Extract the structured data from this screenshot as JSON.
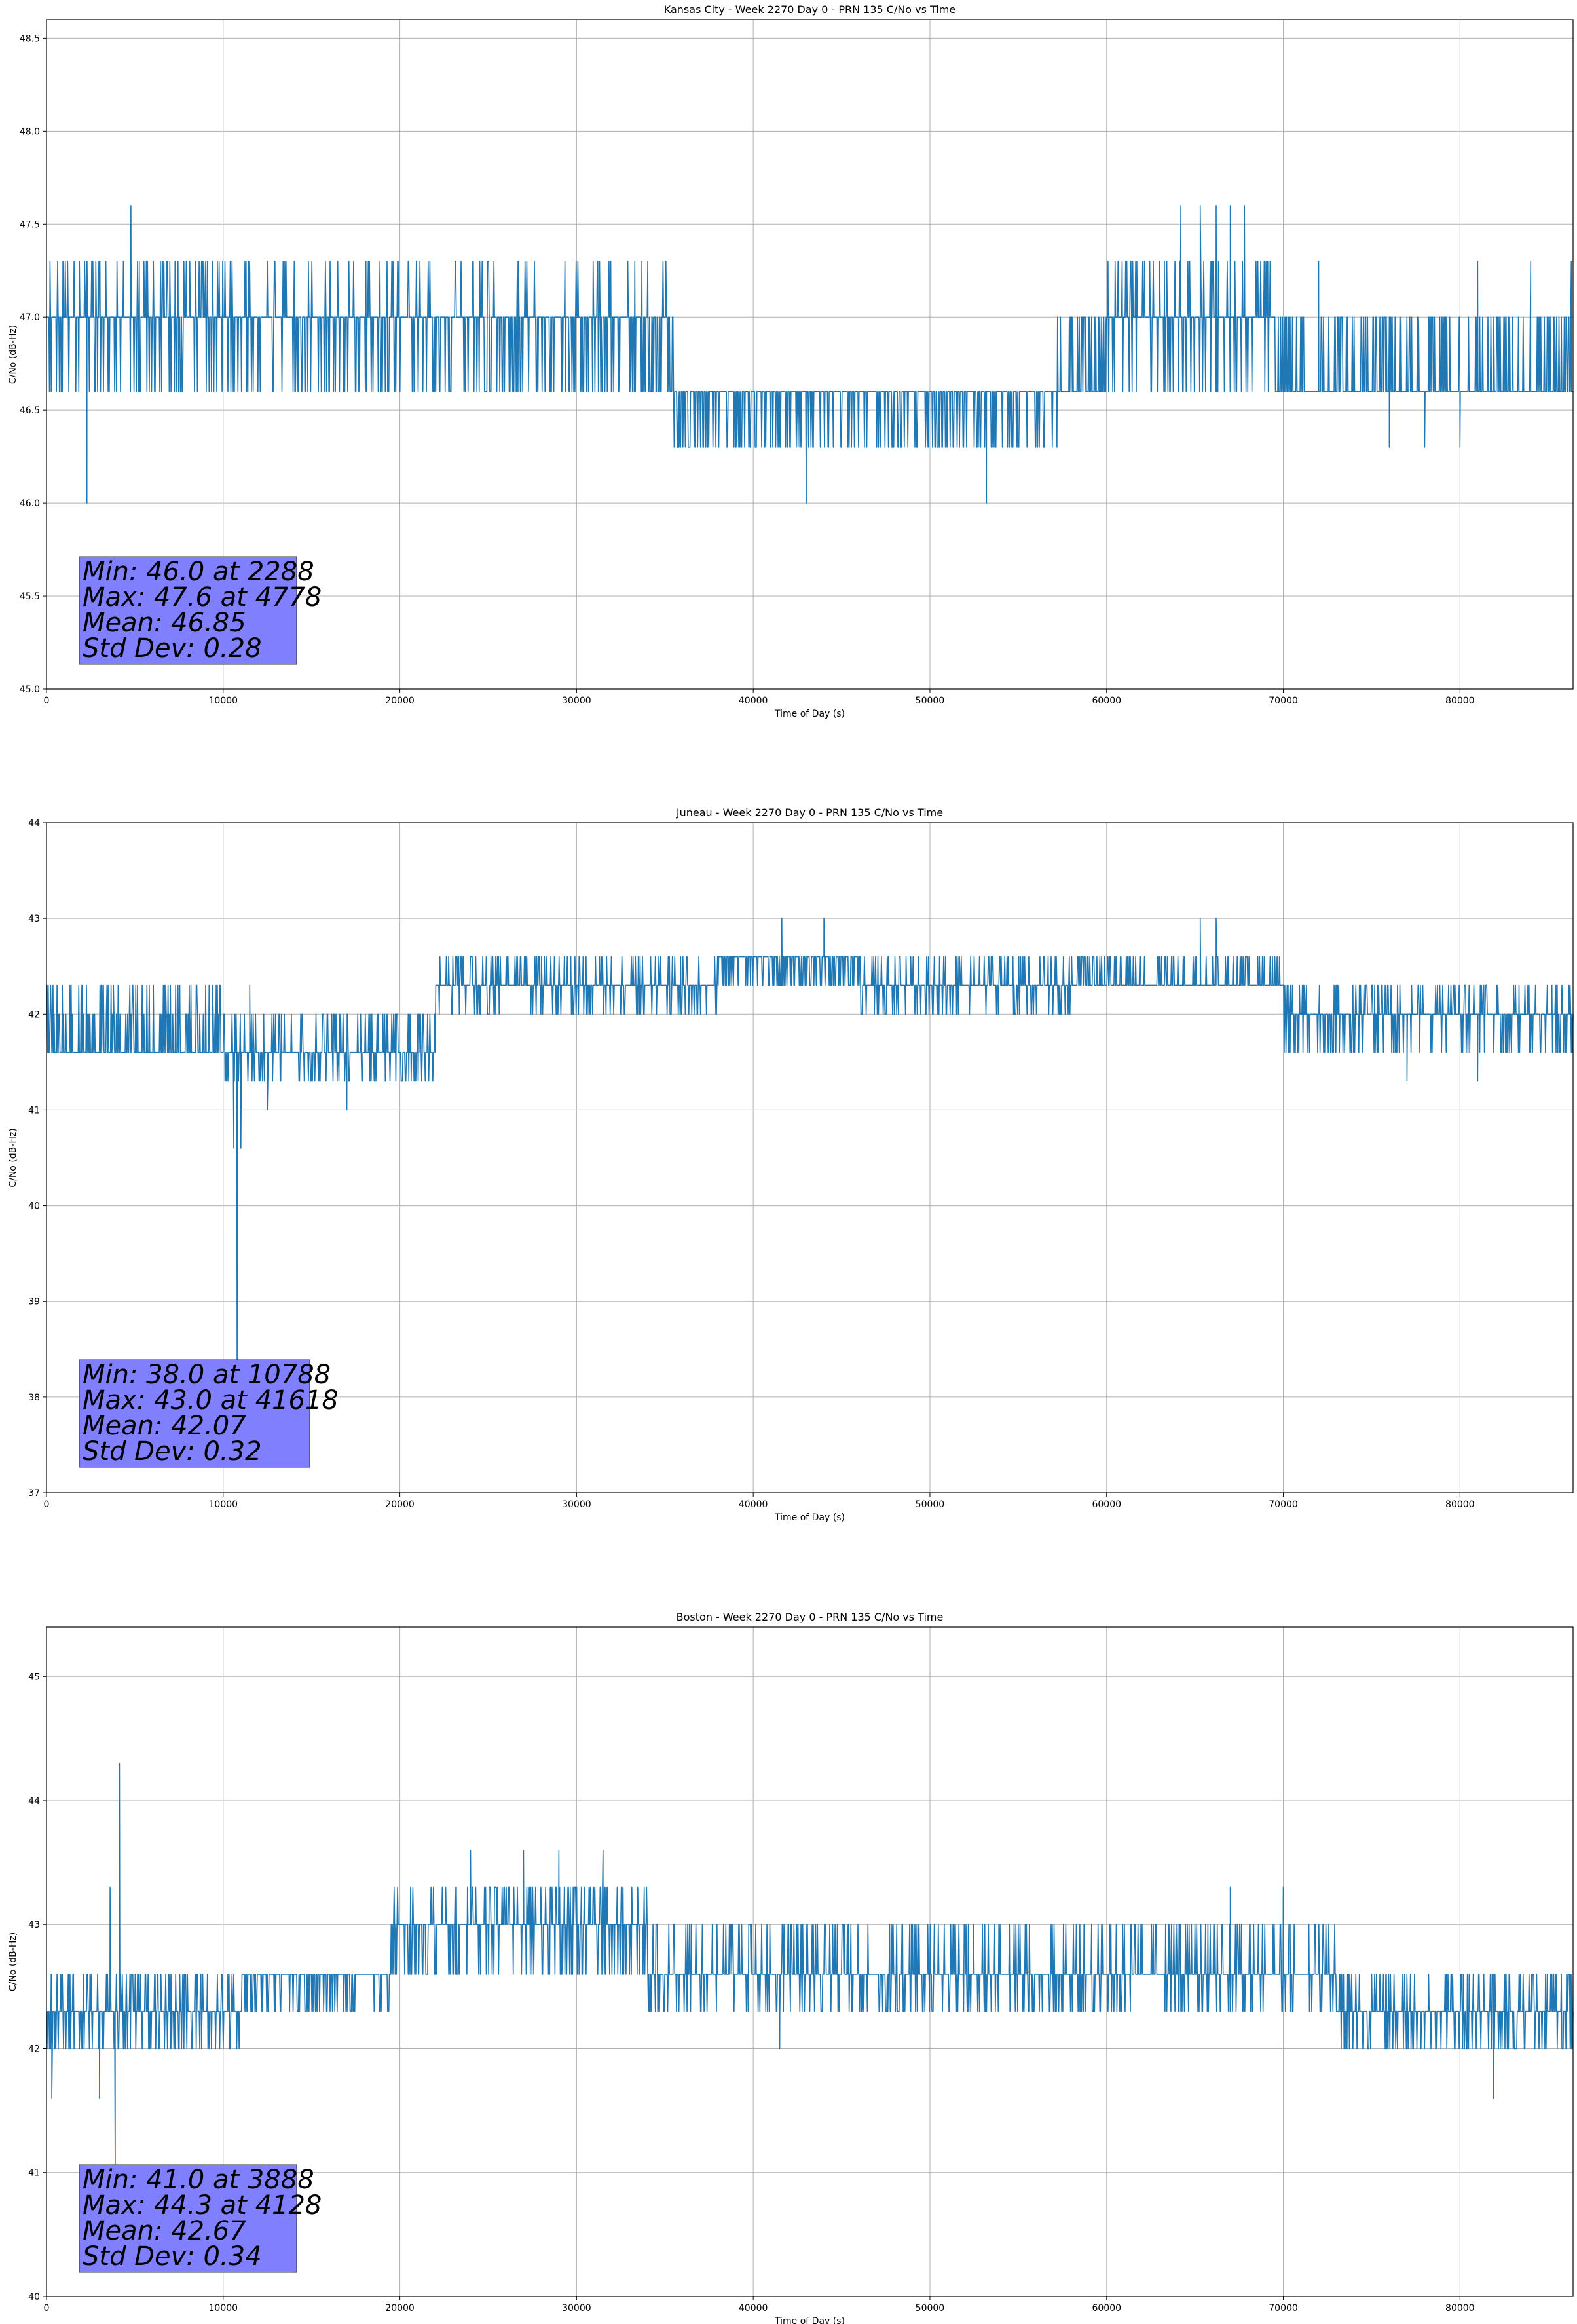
{
  "chart_data": [
    {
      "type": "line",
      "title": "Kansas City - Week 2270 Day 0 - PRN 135 C/No vs Time",
      "xlabel": "Time of Day (s)",
      "ylabel": "C/No (dB-Hz)",
      "xlim": [
        0,
        86400
      ],
      "ylim": [
        45.0,
        48.6
      ],
      "xticks": [
        0,
        10000,
        20000,
        30000,
        40000,
        50000,
        60000,
        70000,
        80000
      ],
      "yticks": [
        45.0,
        45.5,
        46.0,
        46.5,
        47.0,
        47.5,
        48.0,
        48.5
      ],
      "ytick_labels": [
        "45.0",
        "45.5",
        "46.0",
        "46.5",
        "47.0",
        "47.5",
        "48.0",
        "48.5"
      ],
      "grid": true,
      "color": "#1f77b4",
      "stats_lines": [
        "Min: 46.0 at 2288",
        "Max: 47.6 at 4778",
        "Mean: 46.85",
        "Std Dev: 0.28"
      ],
      "segments": [
        {
          "x": [
            0,
            35500
          ],
          "levels": [
            46.6,
            47.0,
            47.3
          ],
          "base": 47.0
        },
        {
          "x": [
            21800,
            33000
          ],
          "levels": [
            46.6,
            47.0
          ],
          "base": 46.9
        },
        {
          "x": [
            33000,
            35500
          ],
          "levels": [
            46.6,
            47.0
          ],
          "base": 46.8
        },
        {
          "x": [
            35500,
            57200
          ],
          "levels": [
            46.3,
            46.6
          ],
          "base": 46.5
        },
        {
          "x": [
            57200,
            60000
          ],
          "levels": [
            46.6,
            47.0
          ],
          "base": 46.8
        },
        {
          "x": [
            60000,
            69500
          ],
          "levels": [
            46.6,
            47.0,
            47.3
          ],
          "base": 47.1
        },
        {
          "x": [
            69500,
            86400
          ],
          "levels": [
            46.6,
            47.0
          ],
          "base": 46.8
        }
      ],
      "spikes": [
        [
          2288,
          46.0
        ],
        [
          4778,
          47.6
        ],
        [
          43000,
          46.0
        ],
        [
          53200,
          46.0
        ],
        [
          64200,
          47.6
        ],
        [
          65300,
          47.6
        ],
        [
          66200,
          47.6
        ],
        [
          67000,
          47.6
        ],
        [
          67800,
          47.6
        ],
        [
          72000,
          47.3
        ],
        [
          81000,
          47.3
        ],
        [
          84000,
          47.3
        ],
        [
          86300,
          47.3
        ],
        [
          76000,
          46.3
        ],
        [
          78000,
          46.3
        ],
        [
          80000,
          46.3
        ]
      ]
    },
    {
      "type": "line",
      "title": "Juneau - Week 2270 Day 0 - PRN 135 C/No vs Time",
      "xlabel": "Time of Day (s)",
      "ylabel": "C/No (dB-Hz)",
      "xlim": [
        0,
        86400
      ],
      "ylim": [
        37,
        44
      ],
      "xticks": [
        0,
        10000,
        20000,
        30000,
        40000,
        50000,
        60000,
        70000,
        80000
      ],
      "yticks": [
        37,
        38,
        39,
        40,
        41,
        42,
        43,
        44
      ],
      "ytick_labels": [
        "37",
        "38",
        "39",
        "40",
        "41",
        "42",
        "43",
        "44"
      ],
      "grid": true,
      "color": "#1f77b4",
      "stats_lines": [
        "Min: 38.0 at 10788",
        "Max: 43.0 at 41618",
        "Mean: 42.07",
        "Std Dev: 0.32"
      ],
      "segments": [
        {
          "x": [
            0,
            10000
          ],
          "levels": [
            41.6,
            42.0,
            42.3
          ],
          "base": 41.8
        },
        {
          "x": [
            10000,
            22000
          ],
          "levels": [
            41.3,
            41.6,
            42.0
          ],
          "base": 41.6
        },
        {
          "x": [
            22000,
            38000
          ],
          "levels": [
            42.0,
            42.3,
            42.6
          ],
          "base": 42.2
        },
        {
          "x": [
            38000,
            46000
          ],
          "levels": [
            42.3,
            42.6
          ],
          "base": 42.5
        },
        {
          "x": [
            46000,
            58000
          ],
          "levels": [
            42.0,
            42.3,
            42.6
          ],
          "base": 42.2
        },
        {
          "x": [
            58000,
            70000
          ],
          "levels": [
            42.3,
            42.6
          ],
          "base": 42.4
        },
        {
          "x": [
            70000,
            86400
          ],
          "levels": [
            41.6,
            42.0,
            42.3
          ],
          "base": 42.0
        }
      ],
      "spikes": [
        [
          10788,
          38.0
        ],
        [
          10600,
          40.6
        ],
        [
          11000,
          40.6
        ],
        [
          41618,
          43.0
        ],
        [
          44000,
          43.0
        ],
        [
          65300,
          43.0
        ],
        [
          66200,
          43.0
        ],
        [
          12500,
          41.0
        ],
        [
          17000,
          41.0
        ],
        [
          77000,
          41.3
        ],
        [
          81000,
          41.3
        ],
        [
          11500,
          42.3
        ]
      ]
    },
    {
      "type": "line",
      "title": "Boston - Week 2270 Day 0 - PRN 135 C/No vs Time",
      "xlabel": "Time of Day (s)",
      "ylabel": "C/No (dB-Hz)",
      "xlim": [
        0,
        86400
      ],
      "ylim": [
        40,
        45.4
      ],
      "xticks": [
        0,
        10000,
        20000,
        30000,
        40000,
        50000,
        60000,
        70000,
        80000
      ],
      "yticks": [
        40,
        41,
        42,
        43,
        44,
        45
      ],
      "ytick_labels": [
        "40",
        "41",
        "42",
        "43",
        "44",
        "45"
      ],
      "grid": true,
      "color": "#1f77b4",
      "stats_lines": [
        "Min: 41.0 at 3888",
        "Max: 44.3 at 4128",
        "Mean: 42.67",
        "Std Dev: 0.34"
      ],
      "segments": [
        {
          "x": [
            0,
            11000
          ],
          "levels": [
            42.0,
            42.3,
            42.6
          ],
          "base": 42.2
        },
        {
          "x": [
            11000,
            19500
          ],
          "levels": [
            42.3,
            42.6
          ],
          "base": 42.5
        },
        {
          "x": [
            19500,
            34000
          ],
          "levels": [
            42.6,
            43.0,
            43.3
          ],
          "base": 43.1
        },
        {
          "x": [
            34000,
            44000
          ],
          "levels": [
            42.3,
            42.6,
            43.0
          ],
          "base": 42.7
        },
        {
          "x": [
            44000,
            73000
          ],
          "levels": [
            42.3,
            42.6,
            43.0
          ],
          "base": 42.8
        },
        {
          "x": [
            73000,
            86400
          ],
          "levels": [
            42.0,
            42.3,
            42.6
          ],
          "base": 42.4
        }
      ],
      "spikes": [
        [
          3888,
          41.0
        ],
        [
          4128,
          44.3
        ],
        [
          3600,
          43.3
        ],
        [
          300,
          41.6
        ],
        [
          81900,
          41.6
        ],
        [
          24000,
          43.6
        ],
        [
          27000,
          43.6
        ],
        [
          29000,
          43.6
        ],
        [
          31500,
          43.6
        ],
        [
          41500,
          42.0
        ],
        [
          67000,
          43.3
        ],
        [
          70000,
          43.3
        ],
        [
          3000,
          41.6
        ]
      ]
    }
  ]
}
